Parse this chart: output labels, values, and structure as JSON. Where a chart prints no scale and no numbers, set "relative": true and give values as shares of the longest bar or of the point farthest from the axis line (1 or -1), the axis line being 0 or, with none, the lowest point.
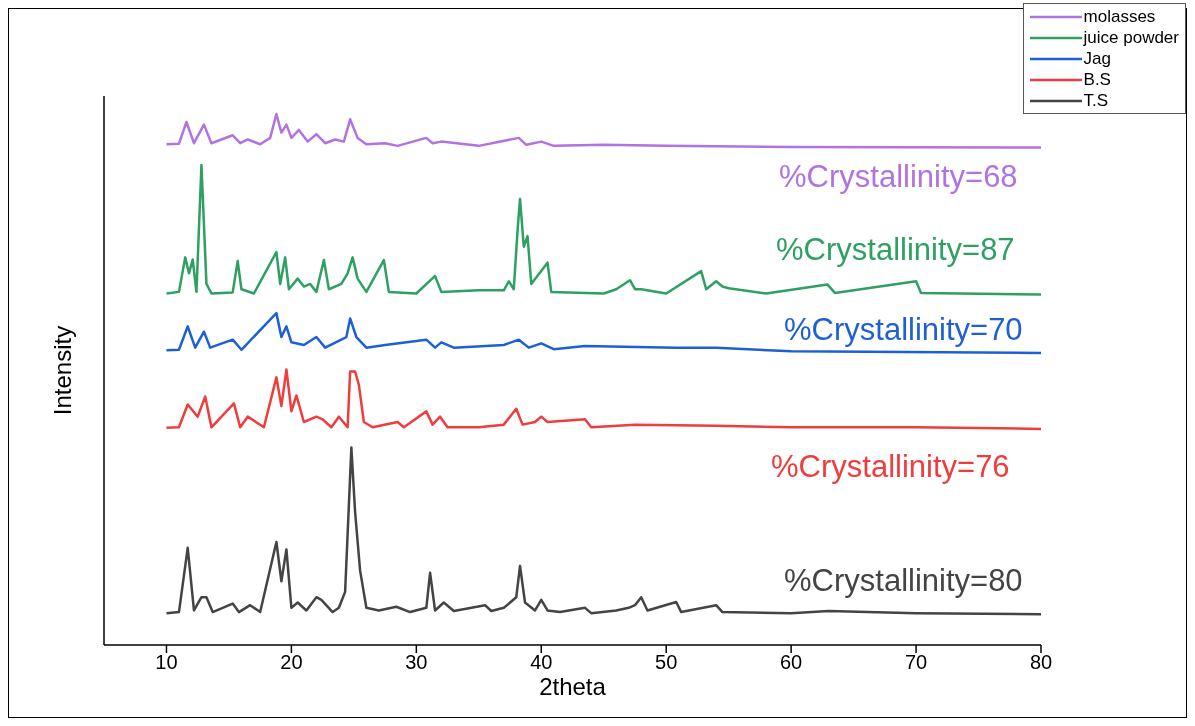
{
  "chart_data": {
    "type": "line",
    "xlabel": "2theta",
    "ylabel": "Intensity",
    "relative": true,
    "xlim": [
      5,
      80
    ],
    "xticks": [
      10,
      20,
      30,
      40,
      50,
      60,
      70,
      80
    ],
    "legend": "top right",
    "grid": false,
    "marker": "none",
    "line_style": "solid",
    "annotations": [
      "%Crystallinity=68",
      "%Crystallinity=87",
      "%Crystallinity=70",
      "%Crystallinity=76",
      "%Crystallinity=80"
    ],
    "series": [
      {
        "name": "molasses",
        "color": "#b073e0",
        "x": [
          10,
          11,
          11.6,
          12.2,
          13,
          13.6,
          15.3,
          15.9,
          16.5,
          17.5,
          18.3,
          18.8,
          19.2,
          19.6,
          20,
          20.6,
          21.3,
          22,
          22.7,
          23.5,
          24.2,
          24.7,
          25.3,
          26,
          27.5,
          28.5,
          30.8,
          31.3,
          32,
          35,
          38.2,
          38.8,
          40,
          41,
          45,
          50,
          60,
          80
        ],
        "values": [
          0.943,
          0.944,
          0.985,
          0.945,
          0.98,
          0.945,
          0.96,
          0.945,
          0.952,
          0.943,
          0.955,
          1.0,
          0.965,
          0.98,
          0.955,
          0.97,
          0.948,
          0.962,
          0.945,
          0.952,
          0.948,
          0.99,
          0.955,
          0.943,
          0.945,
          0.94,
          0.955,
          0.945,
          0.948,
          0.94,
          0.955,
          0.942,
          0.948,
          0.94,
          0.942,
          0.94,
          0.938,
          0.937
        ]
      },
      {
        "name": "juice powder",
        "color": "#2ea062",
        "x": [
          10,
          11,
          11.5,
          11.8,
          12.1,
          12.4,
          12.8,
          13.2,
          13.6,
          15.3,
          15.7,
          16,
          17,
          18.8,
          19.1,
          19.5,
          19.8,
          20.5,
          21,
          21.5,
          22,
          22.6,
          23,
          24,
          24.5,
          24.9,
          25.3,
          26,
          27.4,
          27.8,
          30,
          31.5,
          32,
          35,
          37,
          37.4,
          37.8,
          38.1,
          38.3,
          38.6,
          38.9,
          39.2,
          40.5,
          40.8,
          45,
          46,
          47.1,
          47.5,
          48,
          50,
          52.8,
          53.2,
          54,
          54.5,
          55,
          58,
          62.9,
          63.5,
          70,
          70.4,
          80
        ],
        "values": [
          0.662,
          0.665,
          0.73,
          0.7,
          0.726,
          0.665,
          0.904,
          0.68,
          0.662,
          0.664,
          0.723,
          0.67,
          0.662,
          0.74,
          0.68,
          0.73,
          0.67,
          0.69,
          0.675,
          0.68,
          0.665,
          0.725,
          0.67,
          0.68,
          0.7,
          0.73,
          0.69,
          0.665,
          0.725,
          0.665,
          0.662,
          0.695,
          0.665,
          0.668,
          0.668,
          0.685,
          0.67,
          0.78,
          0.84,
          0.75,
          0.77,
          0.68,
          0.72,
          0.665,
          0.662,
          0.67,
          0.687,
          0.67,
          0.67,
          0.662,
          0.704,
          0.67,
          0.685,
          0.675,
          0.672,
          0.662,
          0.679,
          0.663,
          0.685,
          0.663,
          0.66
        ]
      },
      {
        "name": "Jag",
        "color": "#1f5fd6",
        "x": [
          10,
          11,
          11.7,
          12.3,
          13,
          13.5,
          15.3,
          16,
          18.8,
          19.2,
          19.6,
          20,
          21,
          22,
          22.7,
          24.4,
          24.7,
          25.2,
          26,
          27.5,
          30.8,
          31.5,
          32,
          33,
          37,
          38.2,
          39,
          40,
          41,
          43.5,
          50.8,
          54,
          60,
          80
        ],
        "values": [
          0.555,
          0.556,
          0.6,
          0.56,
          0.59,
          0.56,
          0.575,
          0.556,
          0.625,
          0.58,
          0.6,
          0.57,
          0.565,
          0.58,
          0.56,
          0.58,
          0.615,
          0.58,
          0.56,
          0.565,
          0.575,
          0.56,
          0.57,
          0.56,
          0.565,
          0.575,
          0.56,
          0.568,
          0.557,
          0.563,
          0.56,
          0.56,
          0.553,
          0.55
        ]
      },
      {
        "name": "B.S",
        "color": "#f03c3c",
        "x": [
          10,
          11,
          11.7,
          12.5,
          13.1,
          13.6,
          15.4,
          15.9,
          16.5,
          17.8,
          18.8,
          19.2,
          19.6,
          20,
          20.4,
          21,
          22,
          22.5,
          23.2,
          23.8,
          24.5,
          24.7,
          25.1,
          25.4,
          25.8,
          26.5,
          28.5,
          29,
          30.8,
          31.3,
          31.9,
          32.5,
          35,
          37,
          38,
          38.5,
          39.5,
          40,
          40.5,
          43.5,
          44,
          47.5,
          54,
          60,
          70,
          80
        ],
        "values": [
          0.409,
          0.41,
          0.453,
          0.43,
          0.468,
          0.41,
          0.455,
          0.41,
          0.43,
          0.41,
          0.504,
          0.45,
          0.519,
          0.44,
          0.47,
          0.42,
          0.43,
          0.425,
          0.41,
          0.43,
          0.41,
          0.515,
          0.515,
          0.49,
          0.42,
          0.41,
          0.42,
          0.41,
          0.44,
          0.415,
          0.43,
          0.41,
          0.41,
          0.415,
          0.445,
          0.415,
          0.42,
          0.43,
          0.42,
          0.425,
          0.41,
          0.415,
          0.413,
          0.41,
          0.41,
          0.407
        ]
      },
      {
        "name": "T.S",
        "color": "#444444",
        "x": [
          10,
          11,
          11.7,
          12.2,
          12.8,
          13.2,
          13.7,
          15.3,
          15.8,
          16.7,
          17.5,
          18.8,
          19.2,
          19.6,
          20,
          20.5,
          21.2,
          22,
          22.4,
          23.3,
          23.8,
          24.3,
          24.8,
          25.1,
          25.5,
          26,
          27,
          28.4,
          29.5,
          30.8,
          31.1,
          31.5,
          32.2,
          33,
          35.5,
          36,
          37,
          38,
          38.3,
          38.7,
          39.5,
          40,
          40.5,
          41.5,
          43.5,
          44,
          46,
          47,
          47.5,
          48,
          48.5,
          50.8,
          51.2,
          54,
          54.5,
          60,
          63,
          70,
          80
        ],
        "values": [
          0.06,
          0.062,
          0.183,
          0.065,
          0.09,
          0.09,
          0.062,
          0.078,
          0.062,
          0.075,
          0.062,
          0.194,
          0.12,
          0.18,
          0.07,
          0.08,
          0.065,
          0.09,
          0.085,
          0.062,
          0.07,
          0.1,
          0.372,
          0.25,
          0.14,
          0.07,
          0.065,
          0.072,
          0.062,
          0.07,
          0.136,
          0.065,
          0.08,
          0.064,
          0.075,
          0.064,
          0.07,
          0.09,
          0.149,
          0.08,
          0.065,
          0.085,
          0.065,
          0.062,
          0.07,
          0.06,
          0.065,
          0.07,
          0.075,
          0.09,
          0.065,
          0.081,
          0.062,
          0.075,
          0.062,
          0.06,
          0.064,
          0.06,
          0.058
        ]
      }
    ]
  }
}
